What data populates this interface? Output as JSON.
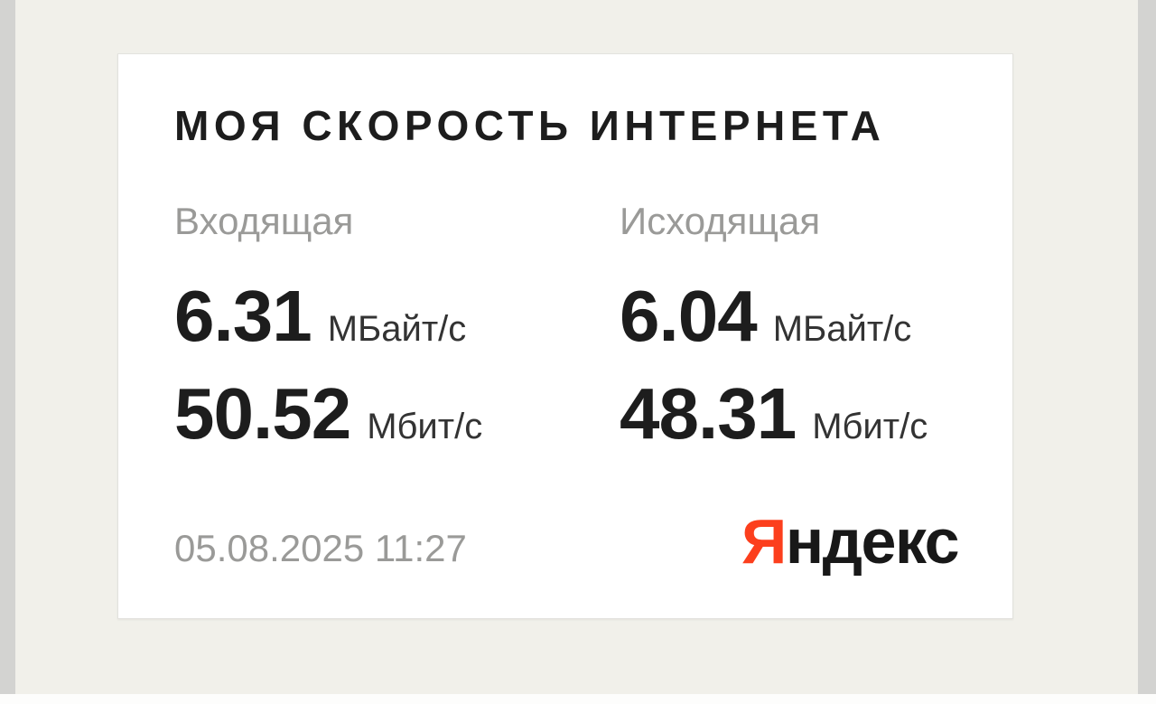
{
  "card": {
    "title": "МОЯ СКОРОСТЬ ИНТЕРНЕТА",
    "download": {
      "label": "Входящая",
      "mbyte_value": "6.31",
      "mbyte_unit": "МБайт/с",
      "mbit_value": "50.52",
      "mbit_unit": "Мбит/с"
    },
    "upload": {
      "label": "Исходящая",
      "mbyte_value": "6.04",
      "mbyte_unit": "МБайт/с",
      "mbit_value": "48.31",
      "mbit_unit": "Мбит/с"
    },
    "timestamp": "05.08.2025 11:27",
    "logo": {
      "first_letter": "Я",
      "rest": "ндекс"
    }
  },
  "colors": {
    "background": "#f1f0ea",
    "edge_strip": "#d3d3d1",
    "bottom_strip": "#fdfdfc",
    "card_background": "#ffffff",
    "card_border": "#e3e2de",
    "text_primary": "#1d1d1d",
    "text_secondary": "#9a9a98",
    "text_unit": "#333333",
    "logo_red": "#fc3f1d",
    "logo_black": "#181818"
  }
}
